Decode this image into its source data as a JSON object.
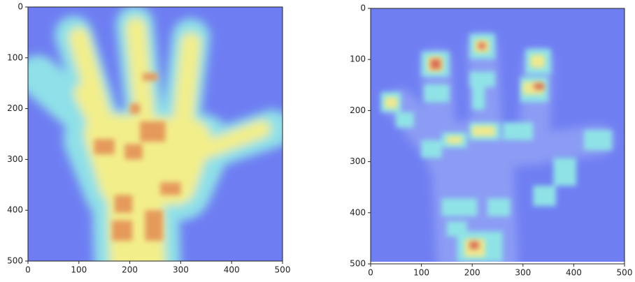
{
  "chart_data": [
    {
      "type": "heatmap",
      "xlim": [
        0,
        500
      ],
      "ylim": [
        500,
        0
      ],
      "xticks": [
        0,
        100,
        200,
        300,
        400,
        500
      ],
      "yticks": [
        0,
        100,
        200,
        300,
        400,
        500
      ]
    },
    {
      "type": "heatmap",
      "xlim": [
        0,
        500
      ],
      "ylim": [
        500,
        0
      ],
      "xticks": [
        0,
        100,
        200,
        300,
        400,
        500
      ],
      "yticks": [
        0,
        100,
        200,
        300,
        400,
        500
      ]
    }
  ]
}
